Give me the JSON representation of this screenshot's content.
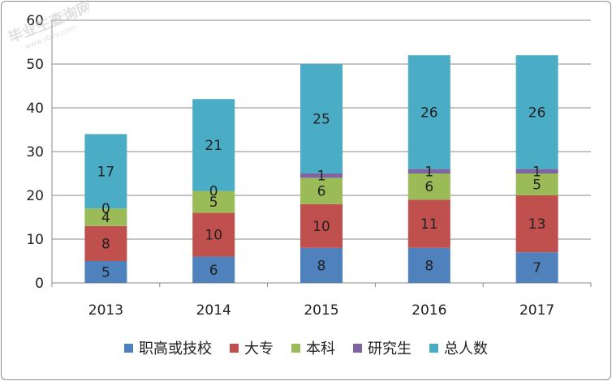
{
  "chart_data": {
    "type": "bar",
    "stacked": true,
    "categories": [
      "2013",
      "2014",
      "2015",
      "2016",
      "2017"
    ],
    "ylim": [
      0,
      60
    ],
    "yticks": [
      0,
      10,
      20,
      30,
      40,
      50,
      60
    ],
    "grid": true,
    "legend_position": "bottom",
    "series": [
      {
        "name": "职高或技校",
        "color": "#4f81bd",
        "values": [
          5,
          6,
          8,
          8,
          7
        ]
      },
      {
        "name": "大专",
        "color": "#c0504d",
        "values": [
          8,
          10,
          10,
          11,
          13
        ]
      },
      {
        "name": "本科",
        "color": "#9bbb59",
        "values": [
          4,
          5,
          6,
          6,
          5
        ]
      },
      {
        "name": "研究生",
        "color": "#8064a2",
        "values": [
          0,
          0,
          1,
          1,
          1
        ]
      },
      {
        "name": "总人数",
        "color": "#4bacc6",
        "values": [
          17,
          21,
          25,
          26,
          26
        ]
      }
    ]
  },
  "watermark": {
    "text": "毕业生查询网",
    "subtext": "www.sbvv.com"
  }
}
